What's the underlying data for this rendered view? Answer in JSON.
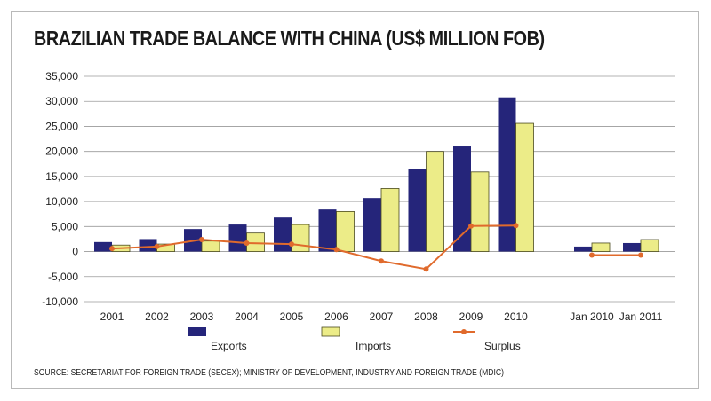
{
  "chart_data": {
    "type": "bar",
    "title": "BRAZILIAN TRADE BALANCE WITH CHINA (US$ MILLION FOB)",
    "categories": [
      "2001",
      "2002",
      "2003",
      "2004",
      "2005",
      "2006",
      "2007",
      "2008",
      "2009",
      "2010",
      "Jan 2010",
      "Jan 2011"
    ],
    "series": [
      {
        "name": "Exports",
        "kind": "bar",
        "color": "#25257a",
        "values": [
          1900,
          2500,
          4500,
          5400,
          6800,
          8400,
          10700,
          16500,
          21000,
          30800,
          1000,
          1700
        ]
      },
      {
        "name": "Imports",
        "kind": "bar",
        "color": "#ecec88",
        "values": [
          1300,
          1500,
          2100,
          3700,
          5400,
          8000,
          12600,
          20000,
          15900,
          25600,
          1700,
          2400
        ]
      },
      {
        "name": "Surplus",
        "kind": "line",
        "color": "#e06a2c",
        "values": [
          600,
          1000,
          2400,
          1700,
          1500,
          400,
          -1900,
          -3500,
          5100,
          5200,
          -700,
          -700
        ]
      }
    ],
    "ylim": [
      -10000,
      35000
    ],
    "yticks": [
      -10000,
      -5000,
      0,
      5000,
      10000,
      15000,
      20000,
      25000,
      30000,
      35000
    ],
    "ytick_labels": [
      "-10,000",
      "-5,000",
      "0",
      "5,000",
      "10,000",
      "15,000",
      "20,000",
      "25,000",
      "30,000",
      "35,000"
    ],
    "xlabel": "",
    "ylabel": "",
    "grid": true,
    "legend": [
      "Exports",
      "Imports",
      "Surplus"
    ]
  },
  "source_note": "SOURCE: SECRETARIAT FOR FOREIGN TRADE (SECEX); MINISTRY OF DEVELOPMENT, INDUSTRY AND FOREIGN TRADE (MDIC)"
}
